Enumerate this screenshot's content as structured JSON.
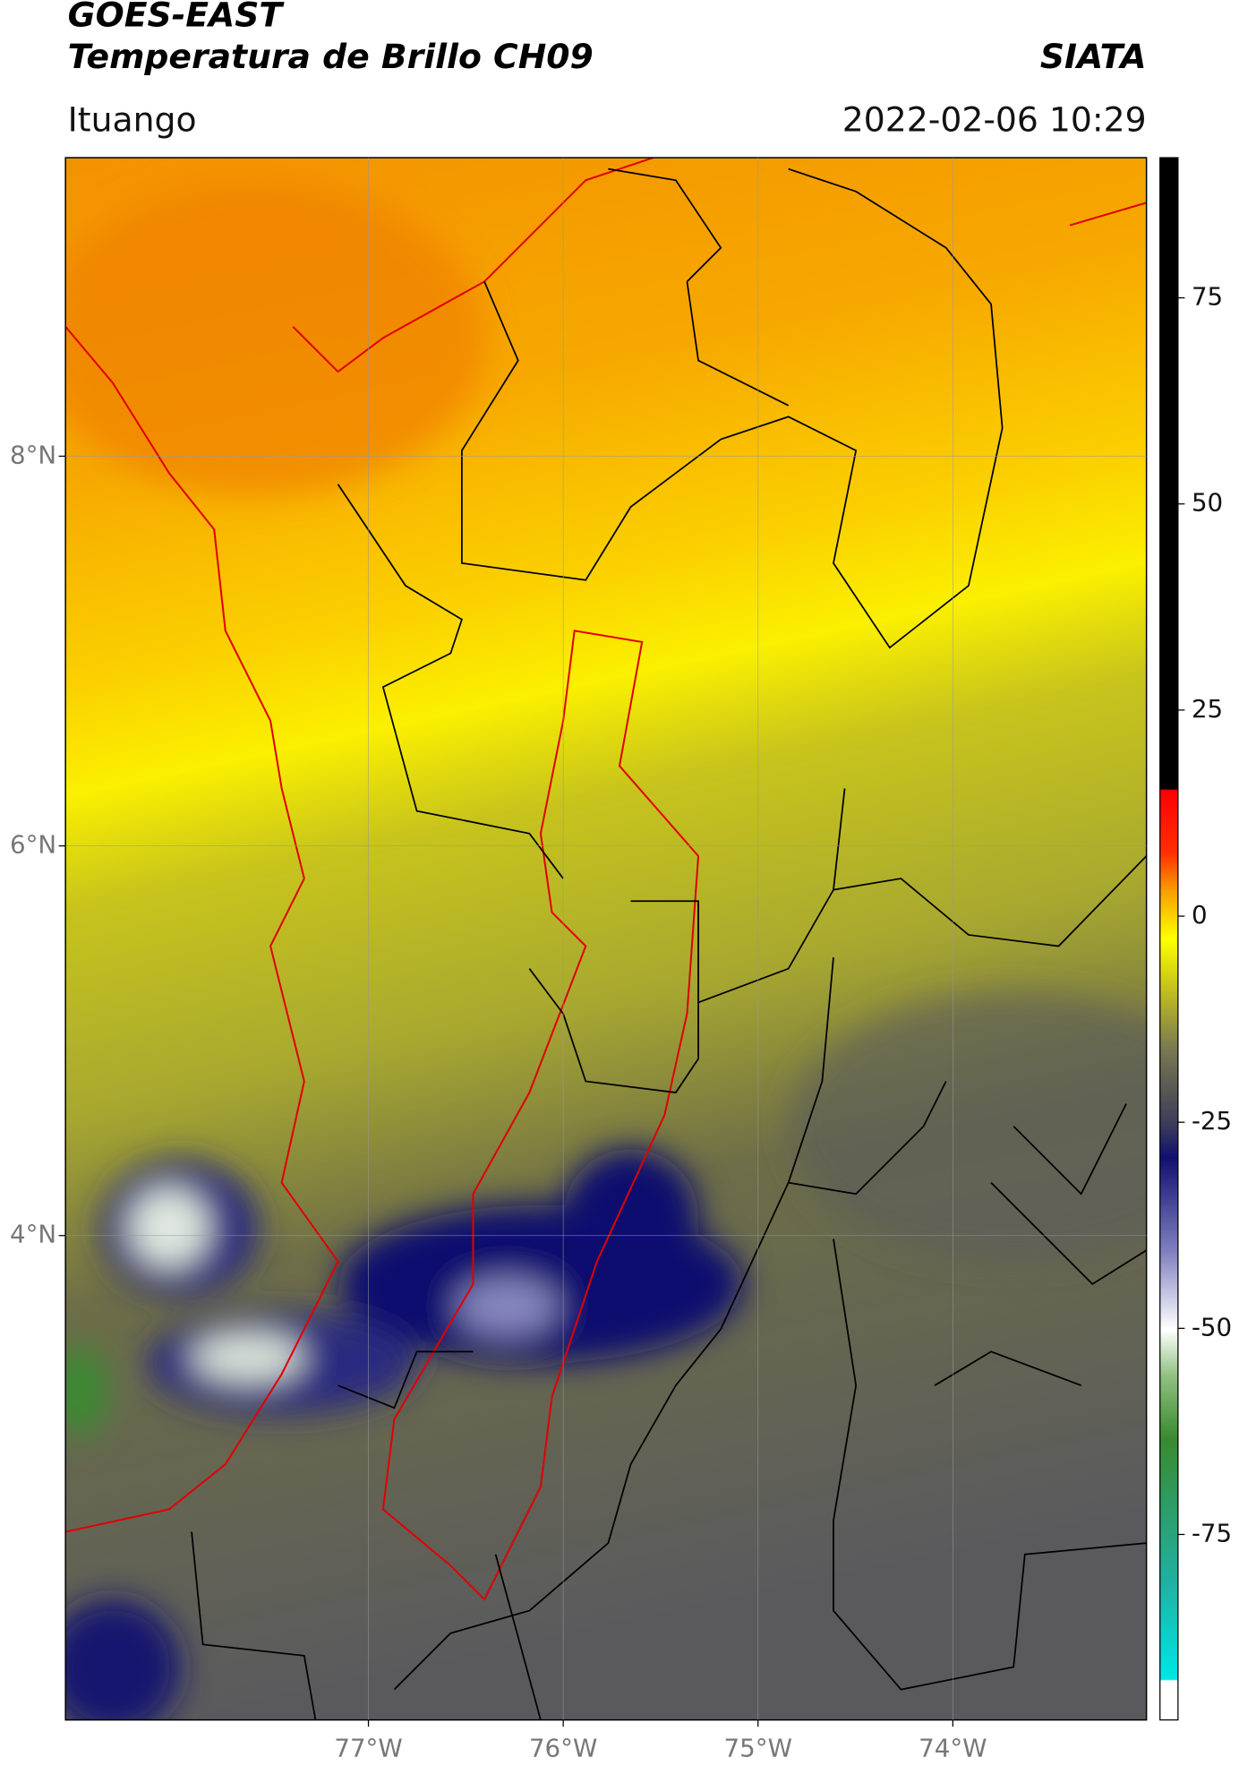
{
  "header": {
    "title": "GOES-EAST",
    "subtitle": "Temperatura de Brillo CH09",
    "source": "SIATA",
    "location": "Ituango",
    "datetime": "2022-02-06 10:29"
  },
  "map": {
    "xlim": [
      -78.555,
      -73.006
    ],
    "ylim": [
      1.514,
      9.532
    ],
    "xticks": [
      {
        "value": -77,
        "label": "77°W"
      },
      {
        "value": -76,
        "label": "76°W"
      },
      {
        "value": -75,
        "label": "75°W"
      },
      {
        "value": -74,
        "label": "74°W"
      }
    ],
    "yticks": [
      {
        "value": 8,
        "label": "8°N"
      },
      {
        "value": 6,
        "label": "6°N"
      },
      {
        "value": 4,
        "label": "4°N"
      }
    ],
    "grid": true
  },
  "colorbar": {
    "lim": [
      -97.5,
      92
    ],
    "ticks": [
      75,
      50,
      25,
      0,
      -25,
      -50,
      -75
    ]
  }
}
